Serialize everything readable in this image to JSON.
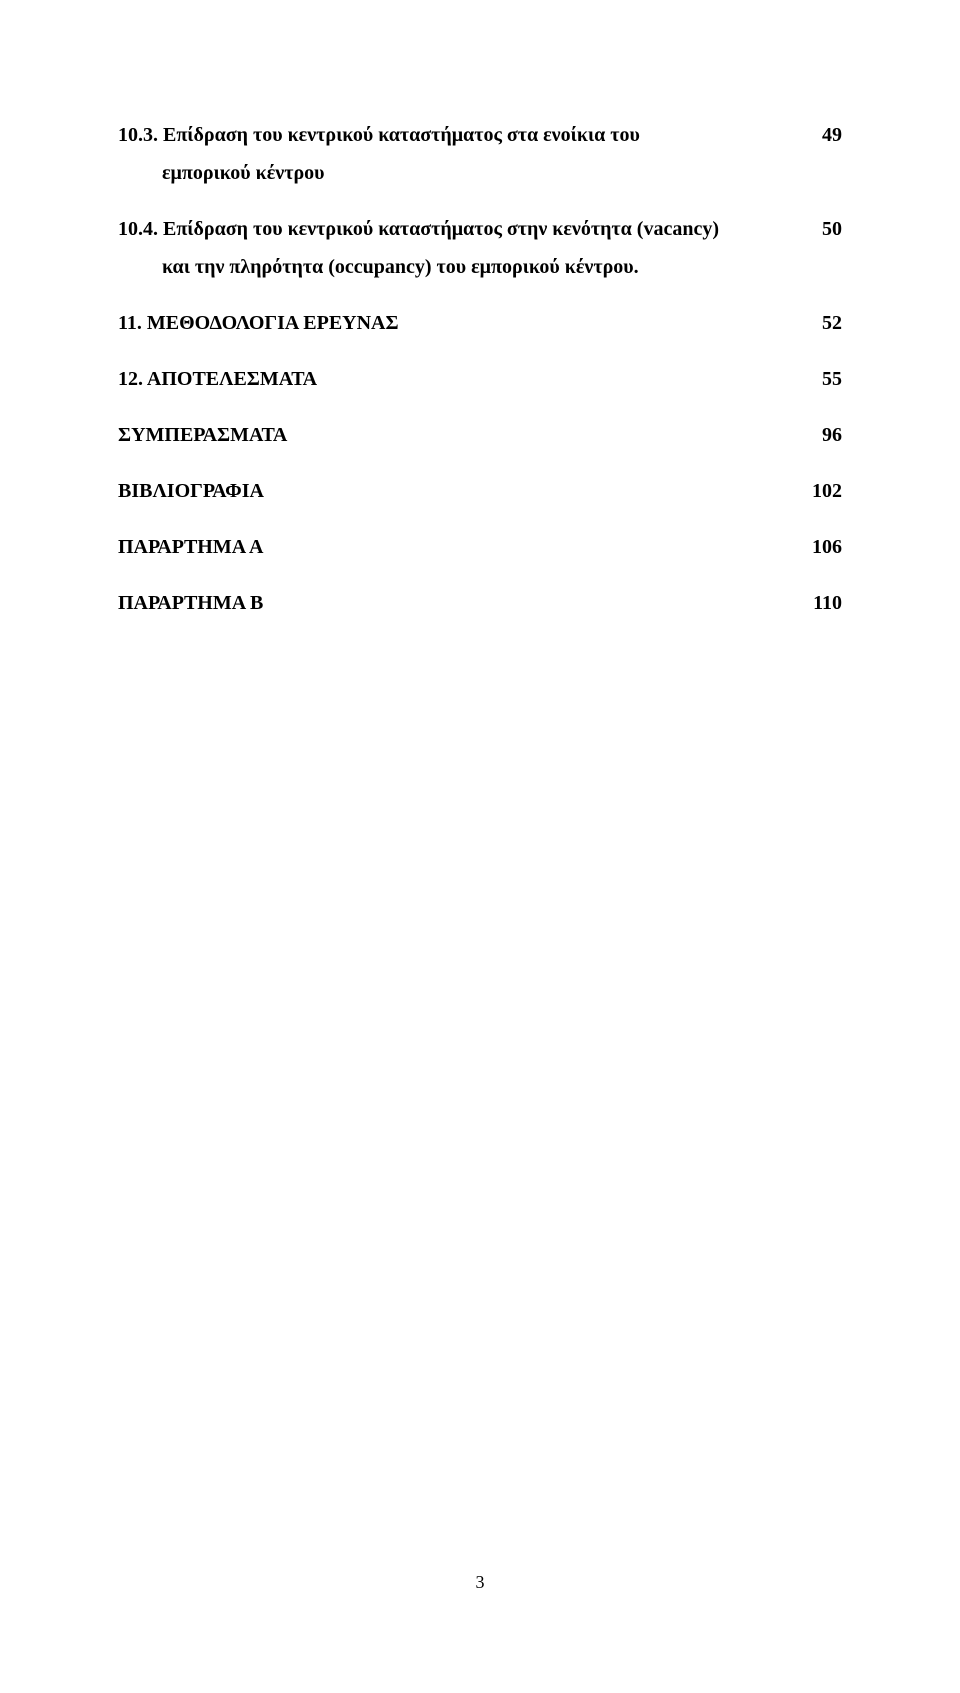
{
  "toc": [
    {
      "label": "10.3. Επίδραση του κεντρικού καταστήματος στα ενοίκια του",
      "page": "49",
      "sub": "εμπορικού κέντρου"
    },
    {
      "label": "10.4. Επίδραση του κεντρικού καταστήματος στην κενότητα (vacancy)",
      "page": "50",
      "sub": "και την πληρότητα (occupancy) του εμπορικού κέντρου."
    },
    {
      "label": "11. ΜΕΘΟΔΟΛΟΓΙΑ ΕΡΕΥΝΑΣ",
      "page": "52"
    },
    {
      "label": "12. ΑΠΟΤΕΛΕΣΜΑΤΑ",
      "page": "55"
    },
    {
      "label": "ΣΥΜΠΕΡΑΣΜΑΤΑ",
      "page": "96"
    },
    {
      "label": "ΒΙΒΛΙΟΓΡΑΦΙΑ",
      "page": "102"
    },
    {
      "label": "ΠΑΡΑΡΤΗΜΑ  Α",
      "page": "106"
    },
    {
      "label": "ΠΑΡΑΡΤΗΜΑ  Β",
      "page": "110"
    }
  ],
  "pageNumber": "3"
}
